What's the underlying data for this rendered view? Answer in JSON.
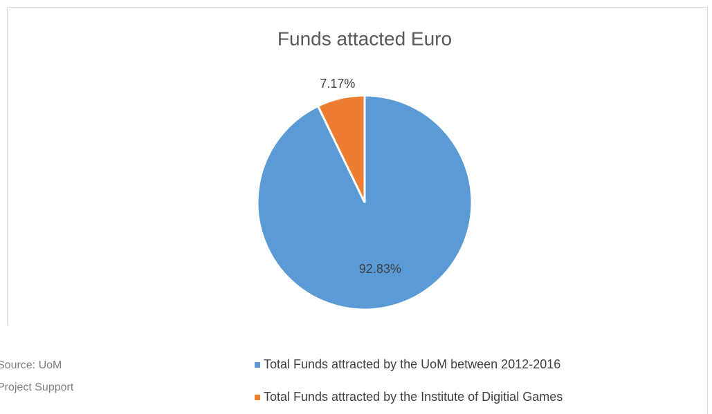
{
  "chart_data": {
    "type": "pie",
    "title": "Funds attacted Euro",
    "categories": [
      "Total Funds attracted by the UoM between 2012-2016",
      "Total Funds attracted by the Institute of Digitial Games"
    ],
    "values": [
      92.83,
      7.17
    ],
    "value_labels": [
      "92.83%",
      "7.17%"
    ],
    "colors": [
      "#5b9bd5",
      "#ed7d31"
    ],
    "legend": "bottom",
    "source": [
      "Source: UoM",
      "Project  Support"
    ]
  }
}
